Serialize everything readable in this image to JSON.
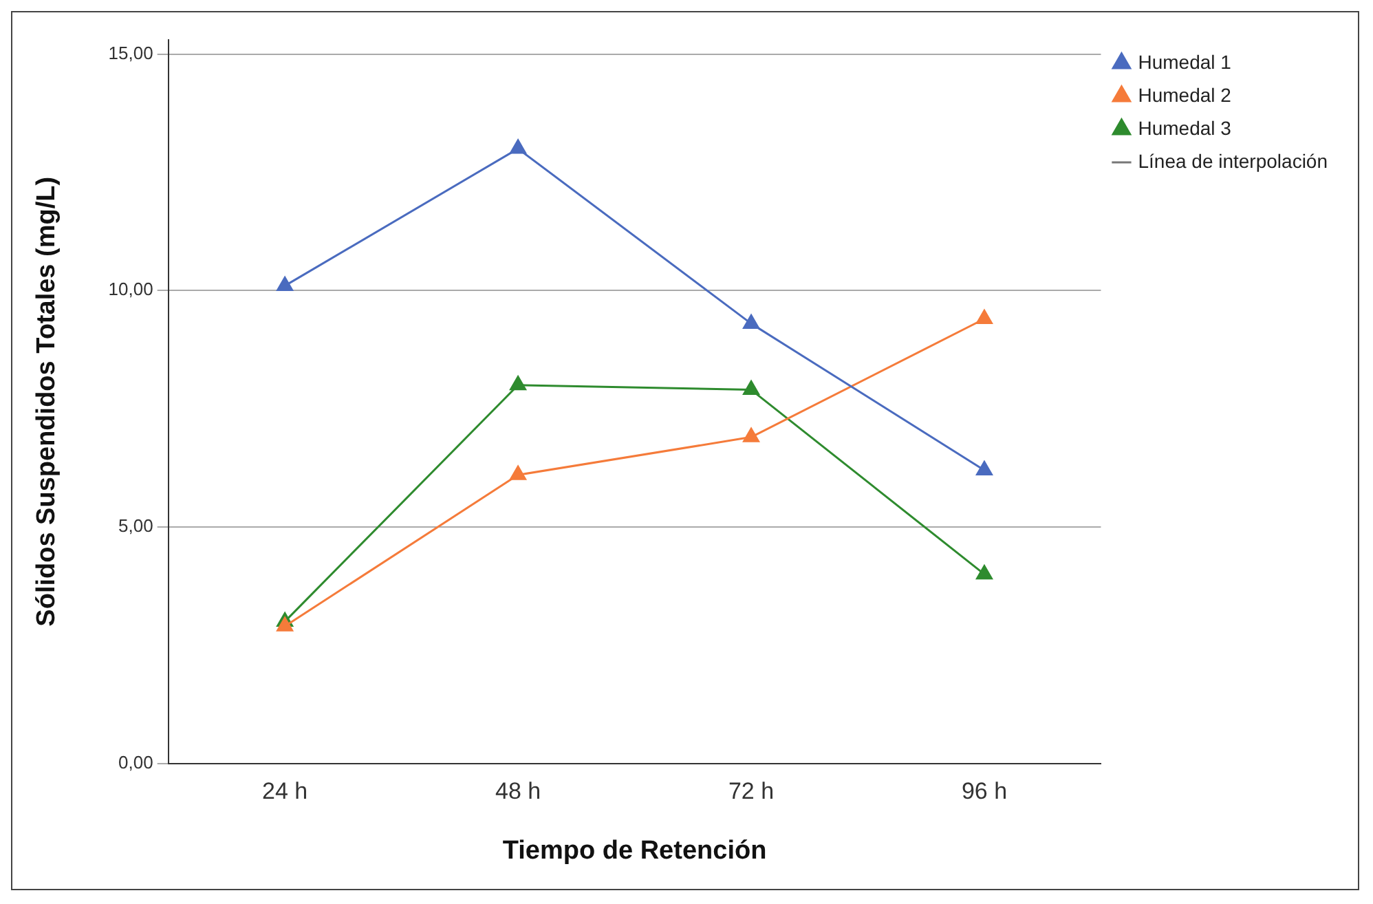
{
  "chart_data": {
    "type": "line",
    "xlabel": "Tiempo de Retención",
    "ylabel": "Sólidos Suspendidos Totales (mg/L)",
    "categories": [
      "24 h",
      "48 h",
      "72 h",
      "96 h"
    ],
    "series": [
      {
        "name": "Humedal 1",
        "color": "#4a6bbf",
        "values": [
          10.1,
          13.0,
          9.3,
          6.2
        ]
      },
      {
        "name": "Humedal 2",
        "color": "#f57b3a",
        "values": [
          2.9,
          6.1,
          6.9,
          9.4
        ]
      },
      {
        "name": "Humedal 3",
        "color": "#2e8b2e",
        "values": [
          3.0,
          8.0,
          7.9,
          4.0
        ]
      }
    ],
    "ylim": [
      0,
      15.3
    ],
    "yticks": [
      {
        "value": 0,
        "label": "0,00"
      },
      {
        "value": 5,
        "label": "5,00"
      },
      {
        "value": 10,
        "label": "10,00"
      },
      {
        "value": 15,
        "label": "15,00"
      }
    ],
    "grid": "y",
    "legend": "top right",
    "marker": "triangle",
    "line_style": "solid",
    "annotations": [
      "Línea de interpolación"
    ]
  }
}
